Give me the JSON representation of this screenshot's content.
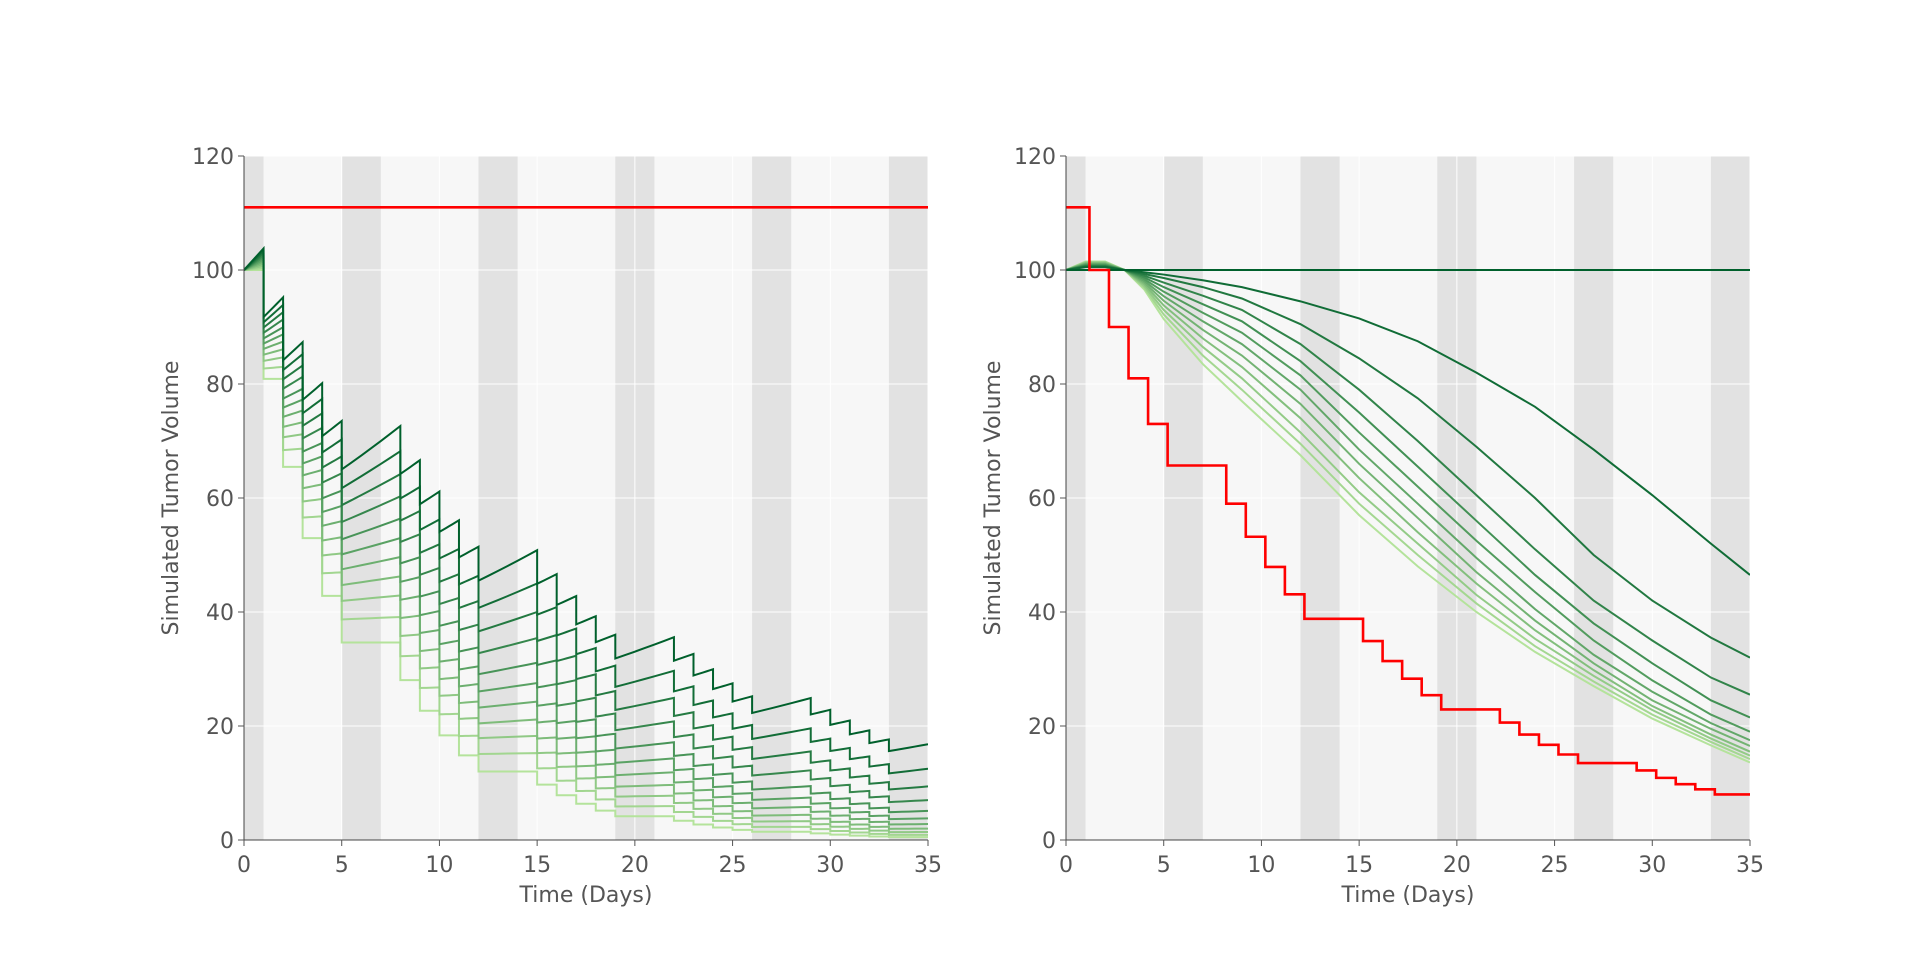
{
  "colors": {
    "background": "#ffffff",
    "plot_background": "#f7f7f7",
    "shade_band": "#e2e2e2",
    "grid": "#ffffff",
    "text": "#555555",
    "reference_line": "#ff0000",
    "green_light": "#b4e39b",
    "green_dark": "#00602c"
  },
  "chart_data": [
    {
      "type": "line",
      "title": "",
      "xlabel": "Time (Days)",
      "ylabel": "Simulated Tumor Volume",
      "xlim": [
        0,
        35
      ],
      "ylim": [
        0,
        120
      ],
      "xticks": [
        0,
        5,
        10,
        15,
        20,
        25,
        30,
        35
      ],
      "yticks": [
        0,
        20,
        40,
        60,
        80,
        100,
        120
      ],
      "grid": true,
      "legend": "none",
      "shaded_x_intervals": [
        [
          0,
          1
        ],
        [
          5,
          7
        ],
        [
          12,
          14
        ],
        [
          19,
          21
        ],
        [
          26,
          28
        ],
        [
          33,
          35
        ]
      ],
      "reference_series": {
        "x": [
          0,
          35
        ],
        "y": [
          111,
          111
        ]
      },
      "dose_days": [
        1,
        2,
        3,
        4,
        5,
        8,
        9,
        10,
        11,
        12,
        15,
        16,
        17,
        18,
        19,
        22,
        23,
        24,
        25,
        26,
        29,
        30,
        31,
        32,
        33
      ],
      "series_model": "sawtooth: exponential regrowth between doses, instantaneous drop at each dose day",
      "series_growth_rates": [
        0.0,
        0.0037,
        0.0074,
        0.0111,
        0.0148,
        0.0185,
        0.0222,
        0.0259,
        0.0296,
        0.0333,
        0.037
      ],
      "series_final_values": [
        0.5,
        0.9,
        1.4,
        2.0,
        2.8,
        3.8,
        5.1,
        7.0,
        9.4,
        12.5,
        16.8
      ],
      "series_start_value": 100,
      "series_color_order": "darkest = slowest regrowth, lightest = fastest regrowth"
    },
    {
      "type": "line",
      "title": "",
      "xlabel": "Time (Days)",
      "ylabel": "Simulated Tumor Volume",
      "xlim": [
        0,
        35
      ],
      "ylim": [
        0,
        120
      ],
      "xticks": [
        0,
        5,
        10,
        15,
        20,
        25,
        30,
        35
      ],
      "yticks": [
        0,
        20,
        40,
        60,
        80,
        100,
        120
      ],
      "grid": true,
      "legend": "none",
      "shaded_x_intervals": [
        [
          0,
          1
        ],
        [
          5,
          7
        ],
        [
          12,
          14
        ],
        [
          19,
          21
        ],
        [
          26,
          28
        ],
        [
          33,
          35
        ]
      ],
      "reference_series": {
        "x": [
          0,
          1.2,
          1.2,
          2.2,
          2.2,
          3.2,
          3.2,
          4.2,
          4.2,
          5.2,
          5.2,
          8.2,
          8.2,
          9.2,
          9.2,
          10.2,
          10.2,
          11.2,
          11.2,
          12.2,
          12.2,
          15.2,
          15.2,
          16.2,
          16.2,
          17.2,
          17.2,
          18.2,
          18.2,
          19.2,
          19.2,
          22.2,
          22.2,
          23.2,
          23.2,
          24.2,
          24.2,
          25.2,
          25.2,
          26.2,
          26.2,
          29.2,
          29.2,
          30.2,
          30.2,
          31.2,
          31.2,
          32.2,
          32.2,
          33.2,
          33.2,
          35
        ],
        "y": [
          111,
          111,
          100,
          100,
          90,
          90,
          81,
          81,
          73,
          73,
          65.7,
          65.7,
          59,
          59,
          53.2,
          53.2,
          47.9,
          47.9,
          43.1,
          43.1,
          38.8,
          38.8,
          34.9,
          34.9,
          31.4,
          31.4,
          28.3,
          28.3,
          25.4,
          25.4,
          22.9,
          22.9,
          20.6,
          20.6,
          18.5,
          18.5,
          16.7,
          16.7,
          15.0,
          15.0,
          13.5,
          13.5,
          12.2,
          12.2,
          10.9,
          10.9,
          9.8,
          9.8,
          8.9,
          8.9,
          8.0,
          8.0
        ]
      },
      "series": [
        {
          "x": [
            0,
            35
          ],
          "y": [
            100,
            100
          ]
        },
        {
          "x": [
            0,
            1,
            2,
            3,
            4,
            5,
            7,
            9,
            12,
            15,
            18,
            21,
            24,
            27,
            30,
            33,
            35
          ],
          "y": [
            100,
            100.5,
            100.5,
            100,
            99.6,
            99.2,
            98.2,
            97,
            94.5,
            91.5,
            87.5,
            82,
            76,
            68.5,
            60.5,
            52,
            46.5
          ]
        },
        {
          "x": [
            0,
            1,
            2,
            3,
            4,
            5,
            7,
            9,
            12,
            15,
            18,
            21,
            24,
            27,
            30,
            33,
            35
          ],
          "y": [
            100,
            100.6,
            100.6,
            100,
            99.3,
            98.6,
            97,
            95,
            90.5,
            84.5,
            77.5,
            69,
            60,
            50,
            42,
            35.5,
            32
          ]
        },
        {
          "x": [
            0,
            1,
            2,
            3,
            4,
            5,
            7,
            9,
            12,
            15,
            18,
            21,
            24,
            27,
            30,
            33,
            35
          ],
          "y": [
            100,
            100.7,
            100.7,
            100,
            99,
            97.8,
            95.5,
            93,
            87,
            79,
            70,
            60.5,
            51,
            42,
            35,
            28.5,
            25.5
          ]
        },
        {
          "x": [
            0,
            1,
            2,
            3,
            4,
            5,
            7,
            9,
            12,
            15,
            18,
            21,
            24,
            27,
            30,
            33,
            35
          ],
          "y": [
            100,
            100.8,
            100.8,
            100,
            98.7,
            97,
            94,
            91,
            84,
            75,
            65.5,
            56,
            46.5,
            38,
            31,
            24.5,
            21.5
          ]
        },
        {
          "x": [
            0,
            1,
            2,
            3,
            4,
            5,
            7,
            9,
            12,
            15,
            18,
            21,
            24,
            27,
            30,
            33,
            35
          ],
          "y": [
            100,
            100.9,
            100.9,
            100,
            98.4,
            96.2,
            92.5,
            89,
            81.5,
            71.5,
            62,
            52.5,
            43.5,
            35,
            28,
            22,
            19
          ]
        },
        {
          "x": [
            0,
            1,
            2,
            3,
            4,
            5,
            7,
            9,
            12,
            15,
            18,
            21,
            24,
            27,
            30,
            33,
            35
          ],
          "y": [
            100,
            101,
            101,
            100,
            98.1,
            95.4,
            91,
            87,
            79,
            68.5,
            59,
            49.5,
            40.5,
            32.5,
            26,
            20.5,
            17.5
          ]
        },
        {
          "x": [
            0,
            1,
            2,
            3,
            4,
            5,
            7,
            9,
            12,
            15,
            18,
            21,
            24,
            27,
            30,
            33,
            35
          ],
          "y": [
            100,
            101.1,
            101.1,
            100,
            97.8,
            94.6,
            89.5,
            85,
            76.5,
            66,
            56.5,
            47,
            38.5,
            31,
            24.5,
            19.5,
            16.5
          ]
        },
        {
          "x": [
            0,
            1,
            2,
            3,
            4,
            5,
            7,
            9,
            12,
            15,
            18,
            21,
            24,
            27,
            30,
            33,
            35
          ],
          "y": [
            100,
            101.2,
            101.2,
            100,
            97.5,
            93.8,
            88,
            83,
            74,
            63.5,
            54,
            45,
            36.8,
            29.8,
            23.5,
            18.5,
            15.5
          ]
        },
        {
          "x": [
            0,
            1,
            2,
            3,
            4,
            5,
            7,
            9,
            12,
            15,
            18,
            21,
            24,
            27,
            30,
            33,
            35
          ],
          "y": [
            100,
            101.3,
            101.3,
            100,
            97.2,
            93,
            86.5,
            81,
            71.5,
            61,
            52,
            43,
            35.3,
            28.8,
            22.8,
            17.8,
            14.8
          ]
        },
        {
          "x": [
            0,
            1,
            2,
            3,
            4,
            5,
            7,
            9,
            12,
            15,
            18,
            21,
            24,
            27,
            30,
            33,
            35
          ],
          "y": [
            100,
            101.4,
            101.4,
            100,
            96.9,
            92.2,
            85,
            79,
            69.5,
            59,
            50,
            41.5,
            34,
            27.8,
            22,
            17.2,
            14.2
          ]
        },
        {
          "x": [
            0,
            1,
            2,
            3,
            4,
            5,
            7,
            9,
            12,
            15,
            18,
            21,
            24,
            27,
            30,
            33,
            35
          ],
          "y": [
            100,
            101.5,
            101.5,
            100,
            96.6,
            91.4,
            83.5,
            77,
            67.5,
            57,
            48,
            40,
            33,
            27,
            21.3,
            16.6,
            13.6
          ]
        }
      ],
      "series_color_order": "first = darkest, last = lightest"
    }
  ]
}
